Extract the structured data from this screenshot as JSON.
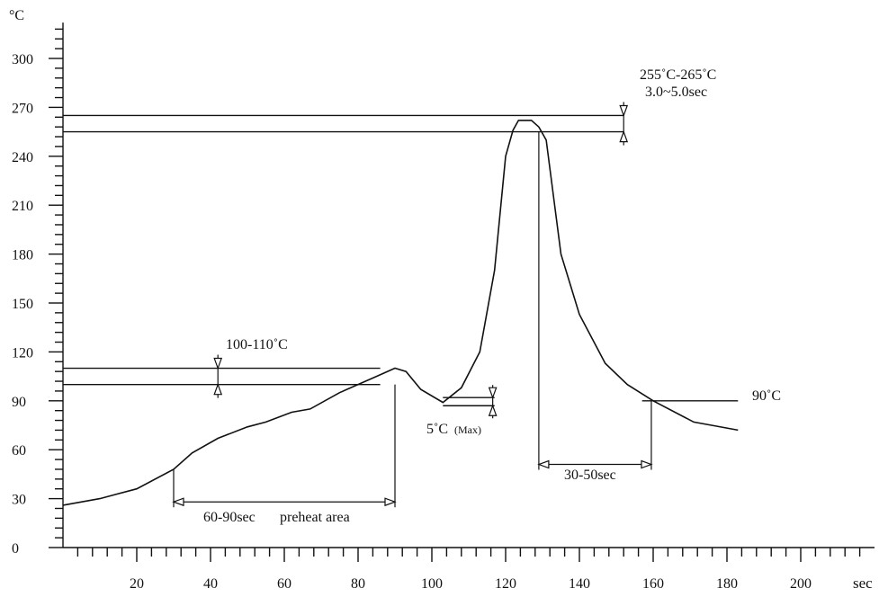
{
  "chart_data": {
    "type": "line",
    "title": "",
    "xlabel": "sec",
    "ylabel": "°C",
    "xlim": [
      0,
      220
    ],
    "ylim": [
      0,
      330
    ],
    "x_ticks": [
      20,
      40,
      60,
      80,
      100,
      120,
      140,
      160,
      180,
      200
    ],
    "y_ticks": [
      0,
      30,
      60,
      90,
      120,
      150,
      180,
      210,
      240,
      270,
      300
    ],
    "grid": false,
    "legend": "none",
    "series": [
      {
        "x": [
          0,
          10,
          20,
          30,
          35,
          42,
          50,
          55,
          62,
          67,
          75,
          85,
          90,
          93,
          97,
          103,
          108,
          113,
          117,
          120,
          122,
          123.5,
          125,
          127,
          129,
          131,
          135,
          140,
          147,
          153,
          160,
          171,
          183
        ],
        "y": [
          26,
          30,
          36,
          48,
          58,
          67,
          74,
          77,
          83,
          85,
          95,
          105,
          110,
          108,
          97,
          89,
          98,
          120,
          170,
          240,
          256,
          262,
          262,
          262,
          258,
          250,
          180,
          143,
          113,
          100,
          90,
          77,
          72
        ]
      }
    ],
    "reference_lines": {
      "lines": [
        {
          "y": 265,
          "x_from": 0,
          "x_to": 152
        },
        {
          "y": 255,
          "x_from": 0,
          "x_to": 152
        },
        {
          "y": 110,
          "x_from": 0,
          "x_to": 86
        },
        {
          "y": 100,
          "x_from": 0,
          "x_to": 86
        },
        {
          "y": 92,
          "x_from": 103,
          "x_to": 117
        },
        {
          "y": 87,
          "x_from": 103,
          "x_to": 117
        },
        {
          "y": 90,
          "x_from": 157,
          "x_to": 183
        }
      ]
    },
    "annotations": [
      {
        "text": "255˚C-265˚C"
      },
      {
        "text": "3.0~5.0sec"
      },
      {
        "text": "100-110˚C"
      },
      {
        "text": "5˚C"
      },
      {
        "text": "(Max)"
      },
      {
        "text": "90˚C"
      },
      {
        "text": "30-50sec"
      },
      {
        "text": "60-90sec"
      },
      {
        "text": "preheat area"
      }
    ]
  }
}
